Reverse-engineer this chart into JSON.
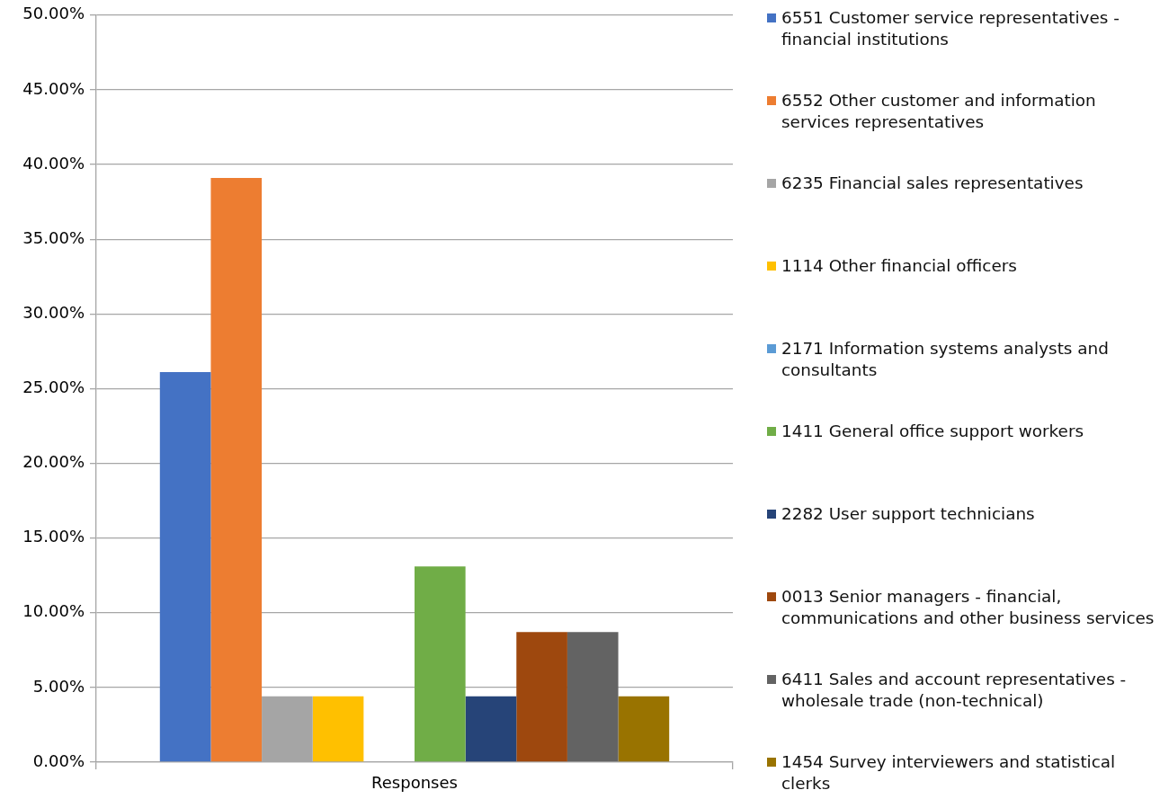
{
  "chart_data": {
    "type": "bar",
    "categories": [
      "Responses"
    ],
    "series": [
      {
        "name": "6551 Customer service representatives - financial institutions",
        "color": "#4472c4",
        "values": [
          26.1
        ]
      },
      {
        "name": "6552 Other customer and information services representatives",
        "color": "#ed7d31",
        "values": [
          39.1
        ]
      },
      {
        "name": "6235 Financial sales representatives",
        "color": "#a5a5a5",
        "values": [
          4.4
        ]
      },
      {
        "name": "1114 Other financial officers",
        "color": "#ffc000",
        "values": [
          4.4
        ]
      },
      {
        "name": "2171 Information systems analysts and consultants",
        "color": "#5b9bd5",
        "values": [
          0
        ]
      },
      {
        "name": "1411 General office support workers",
        "color": "#70ad47",
        "values": [
          13.1
        ]
      },
      {
        "name": "2282 User support technicians",
        "color": "#264478",
        "values": [
          4.4
        ]
      },
      {
        "name": "0013 Senior managers - financial, communications and other business services",
        "color": "#9e480e",
        "values": [
          8.7
        ]
      },
      {
        "name": "6411 Sales and account representatives - wholesale trade (non-technical)",
        "color": "#636363",
        "values": [
          8.7
        ]
      },
      {
        "name": "1454 Survey interviewers and statistical clerks",
        "color": "#997300",
        "values": [
          4.4
        ]
      }
    ],
    "ylim": [
      0,
      50
    ],
    "yticks": [
      {
        "value": 0,
        "label": "0.00%"
      },
      {
        "value": 5,
        "label": "5.00%"
      },
      {
        "value": 10,
        "label": "10.00%"
      },
      {
        "value": 15,
        "label": "15.00%"
      },
      {
        "value": 20,
        "label": "20.00%"
      },
      {
        "value": 25,
        "label": "25.00%"
      },
      {
        "value": 30,
        "label": "30.00%"
      },
      {
        "value": 35,
        "label": "35.00%"
      },
      {
        "value": 40,
        "label": "40.00%"
      },
      {
        "value": 45,
        "label": "45.00%"
      },
      {
        "value": 50,
        "label": "50.00%"
      }
    ],
    "grid": "y",
    "legend": "right"
  }
}
